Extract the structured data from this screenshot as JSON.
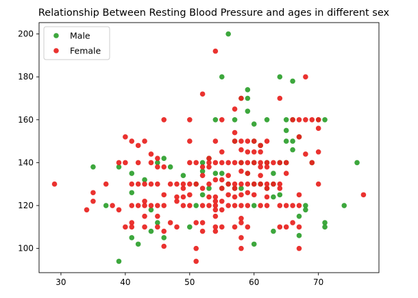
{
  "chart_data": {
    "type": "scatter",
    "title": "Relationship Between Resting Blood Pressure and ages in different sex",
    "xlabel": "",
    "ylabel": "",
    "xlim": [
      26.6,
      79.4
    ],
    "ylim": [
      88.7,
      205.3
    ],
    "xticks": [
      30,
      40,
      50,
      60,
      70
    ],
    "yticks": [
      100,
      120,
      140,
      160,
      180,
      200
    ],
    "grid": false,
    "legend_position": "top-left",
    "series": [
      {
        "name": "Male",
        "color": "#2ca02c",
        "points": [
          [
            35,
            138
          ],
          [
            37,
            120
          ],
          [
            39,
            94
          ],
          [
            39,
            138
          ],
          [
            41,
            105
          ],
          [
            41,
            126
          ],
          [
            41,
            135
          ],
          [
            42,
            102
          ],
          [
            43,
            132
          ],
          [
            44,
            108
          ],
          [
            44,
            118
          ],
          [
            45,
            112
          ],
          [
            45,
            140
          ],
          [
            46,
            105
          ],
          [
            46,
            142
          ],
          [
            47,
            138
          ],
          [
            49,
            134
          ],
          [
            50,
            110
          ],
          [
            51,
            120
          ],
          [
            51,
            130
          ],
          [
            52,
            125
          ],
          [
            52,
            136
          ],
          [
            52,
            140
          ],
          [
            53,
            128
          ],
          [
            53,
            142
          ],
          [
            54,
            135
          ],
          [
            54,
            160
          ],
          [
            55,
            128
          ],
          [
            55,
            135
          ],
          [
            55,
            180
          ],
          [
            56,
            130
          ],
          [
            56,
            200
          ],
          [
            57,
            128
          ],
          [
            57,
            150
          ],
          [
            57,
            160
          ],
          [
            58,
            128
          ],
          [
            58,
            140
          ],
          [
            58,
            170
          ],
          [
            59,
            135
          ],
          [
            59,
            164
          ],
          [
            59,
            170
          ],
          [
            59,
            174
          ],
          [
            60,
            102
          ],
          [
            60,
            120
          ],
          [
            60,
            130
          ],
          [
            60,
            140
          ],
          [
            60,
            150
          ],
          [
            60,
            158
          ],
          [
            61,
            130
          ],
          [
            61,
            148
          ],
          [
            62,
            128
          ],
          [
            62,
            140
          ],
          [
            62,
            160
          ],
          [
            63,
            108
          ],
          [
            63,
            124
          ],
          [
            63,
            130
          ],
          [
            63,
            135
          ],
          [
            64,
            125
          ],
          [
            64,
            140
          ],
          [
            64,
            180
          ],
          [
            65,
            140
          ],
          [
            65,
            150
          ],
          [
            65,
            155
          ],
          [
            65,
            160
          ],
          [
            66,
            146
          ],
          [
            66,
            150
          ],
          [
            66,
            160
          ],
          [
            66,
            178
          ],
          [
            67,
            106
          ],
          [
            67,
            115
          ],
          [
            67,
            152
          ],
          [
            68,
            118
          ],
          [
            68,
            120
          ],
          [
            69,
            140
          ],
          [
            70,
            160
          ],
          [
            71,
            110
          ],
          [
            71,
            112
          ],
          [
            71,
            160
          ],
          [
            74,
            120
          ],
          [
            76,
            140
          ]
        ]
      },
      {
        "name": "Female",
        "color": "#e8211d",
        "points": [
          [
            29,
            130
          ],
          [
            34,
            118
          ],
          [
            35,
            122
          ],
          [
            35,
            126
          ],
          [
            37,
            130
          ],
          [
            38,
            120
          ],
          [
            39,
            118
          ],
          [
            39,
            140
          ],
          [
            40,
            110
          ],
          [
            40,
            140
          ],
          [
            40,
            152
          ],
          [
            41,
            110
          ],
          [
            41,
            112
          ],
          [
            41,
            120
          ],
          [
            41,
            130
          ],
          [
            41,
            150
          ],
          [
            42,
            120
          ],
          [
            42,
            130
          ],
          [
            42,
            140
          ],
          [
            42,
            148
          ],
          [
            43,
            110
          ],
          [
            43,
            115
          ],
          [
            43,
            120
          ],
          [
            43,
            122
          ],
          [
            43,
            130
          ],
          [
            43,
            150
          ],
          [
            44,
            120
          ],
          [
            44,
            130
          ],
          [
            44,
            140
          ],
          [
            44,
            144
          ],
          [
            45,
            110
          ],
          [
            45,
            115
          ],
          [
            45,
            120
          ],
          [
            45,
            130
          ],
          [
            45,
            138
          ],
          [
            45,
            142
          ],
          [
            46,
            101
          ],
          [
            46,
            108
          ],
          [
            46,
            120
          ],
          [
            46,
            125
          ],
          [
            46,
            138
          ],
          [
            46,
            160
          ],
          [
            47,
            112
          ],
          [
            47,
            130
          ],
          [
            48,
            110
          ],
          [
            48,
            122
          ],
          [
            48,
            124
          ],
          [
            48,
            130
          ],
          [
            49,
            120
          ],
          [
            49,
            124
          ],
          [
            49,
            128
          ],
          [
            49,
            130
          ],
          [
            50,
            120
          ],
          [
            50,
            125
          ],
          [
            50,
            130
          ],
          [
            50,
            140
          ],
          [
            50,
            150
          ],
          [
            50,
            160
          ],
          [
            51,
            94
          ],
          [
            51,
            100
          ],
          [
            51,
            112
          ],
          [
            51,
            130
          ],
          [
            51,
            140
          ],
          [
            52,
            108
          ],
          [
            52,
            112
          ],
          [
            52,
            120
          ],
          [
            52,
            128
          ],
          [
            52,
            134
          ],
          [
            52,
            138
          ],
          [
            52,
            172
          ],
          [
            53,
            120
          ],
          [
            53,
            124
          ],
          [
            53,
            130
          ],
          [
            53,
            138
          ],
          [
            53,
            140
          ],
          [
            53,
            142
          ],
          [
            54,
            108
          ],
          [
            54,
            110
          ],
          [
            54,
            115
          ],
          [
            54,
            118
          ],
          [
            54,
            120
          ],
          [
            54,
            122
          ],
          [
            54,
            124
          ],
          [
            54,
            132
          ],
          [
            54,
            140
          ],
          [
            54,
            150
          ],
          [
            54,
            192
          ],
          [
            55,
            110
          ],
          [
            55,
            118
          ],
          [
            55,
            122
          ],
          [
            55,
            128
          ],
          [
            55,
            132
          ],
          [
            55,
            140
          ],
          [
            55,
            145
          ],
          [
            55,
            160
          ],
          [
            56,
            120
          ],
          [
            56,
            125
          ],
          [
            56,
            130
          ],
          [
            56,
            134
          ],
          [
            56,
            140
          ],
          [
            57,
            110
          ],
          [
            57,
            120
          ],
          [
            57,
            124
          ],
          [
            57,
            128
          ],
          [
            57,
            130
          ],
          [
            57,
            140
          ],
          [
            57,
            150
          ],
          [
            57,
            154
          ],
          [
            57,
            165
          ],
          [
            58,
            100
          ],
          [
            58,
            105
          ],
          [
            58,
            112
          ],
          [
            58,
            114
          ],
          [
            58,
            120
          ],
          [
            58,
            125
          ],
          [
            58,
            130
          ],
          [
            58,
            136
          ],
          [
            58,
            140
          ],
          [
            58,
            146
          ],
          [
            58,
            150
          ],
          [
            58,
            170
          ],
          [
            59,
            110
          ],
          [
            59,
            120
          ],
          [
            59,
            126
          ],
          [
            59,
            130
          ],
          [
            59,
            135
          ],
          [
            59,
            140
          ],
          [
            59,
            145
          ],
          [
            59,
            150
          ],
          [
            60,
            125
          ],
          [
            60,
            130
          ],
          [
            60,
            140
          ],
          [
            60,
            145
          ],
          [
            60,
            150
          ],
          [
            61,
            120
          ],
          [
            61,
            130
          ],
          [
            61,
            134
          ],
          [
            61,
            138
          ],
          [
            61,
            140
          ],
          [
            61,
            145
          ],
          [
            61,
            148
          ],
          [
            62,
            120
          ],
          [
            62,
            124
          ],
          [
            62,
            128
          ],
          [
            62,
            130
          ],
          [
            62,
            138
          ],
          [
            62,
            140
          ],
          [
            62,
            150
          ],
          [
            63,
            130
          ],
          [
            63,
            140
          ],
          [
            64,
            110
          ],
          [
            64,
            120
          ],
          [
            64,
            128
          ],
          [
            64,
            130
          ],
          [
            64,
            140
          ],
          [
            64,
            170
          ],
          [
            65,
            110
          ],
          [
            65,
            120
          ],
          [
            65,
            135
          ],
          [
            65,
            140
          ],
          [
            66,
            112
          ],
          [
            66,
            120
          ],
          [
            66,
            160
          ],
          [
            67,
            100
          ],
          [
            67,
            110
          ],
          [
            67,
            120
          ],
          [
            67,
            125
          ],
          [
            67,
            152
          ],
          [
            67,
            160
          ],
          [
            68,
            144
          ],
          [
            68,
            160
          ],
          [
            68,
            180
          ],
          [
            69,
            140
          ],
          [
            69,
            160
          ],
          [
            70,
            130
          ],
          [
            70,
            145
          ],
          [
            70,
            156
          ],
          [
            70,
            160
          ],
          [
            77,
            125
          ]
        ]
      }
    ]
  }
}
